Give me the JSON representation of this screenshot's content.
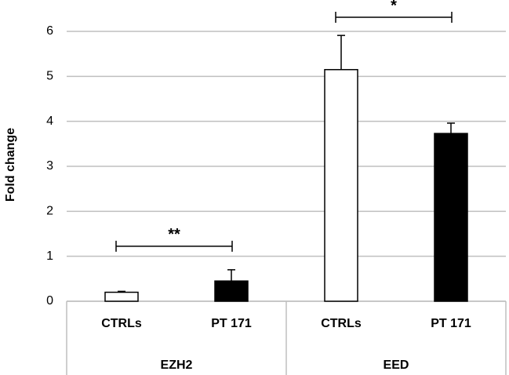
{
  "chart_data": {
    "type": "bar",
    "y_label": "Fold change",
    "categories": [
      "EZH2",
      "EED"
    ],
    "series": [
      {
        "name": "CTRLs",
        "color": "#ffffff",
        "values": [
          0.2,
          5.15
        ],
        "errors": [
          0.02,
          0.76
        ]
      },
      {
        "name": "PT 171",
        "color": "#000000",
        "values": [
          0.45,
          3.73
        ],
        "errors": [
          0.25,
          0.23
        ]
      }
    ],
    "significance": [
      "**",
      "*"
    ],
    "ylim": [
      0,
      6
    ],
    "yticks": [
      0,
      1,
      2,
      3,
      4,
      5,
      6
    ],
    "grid": true
  }
}
